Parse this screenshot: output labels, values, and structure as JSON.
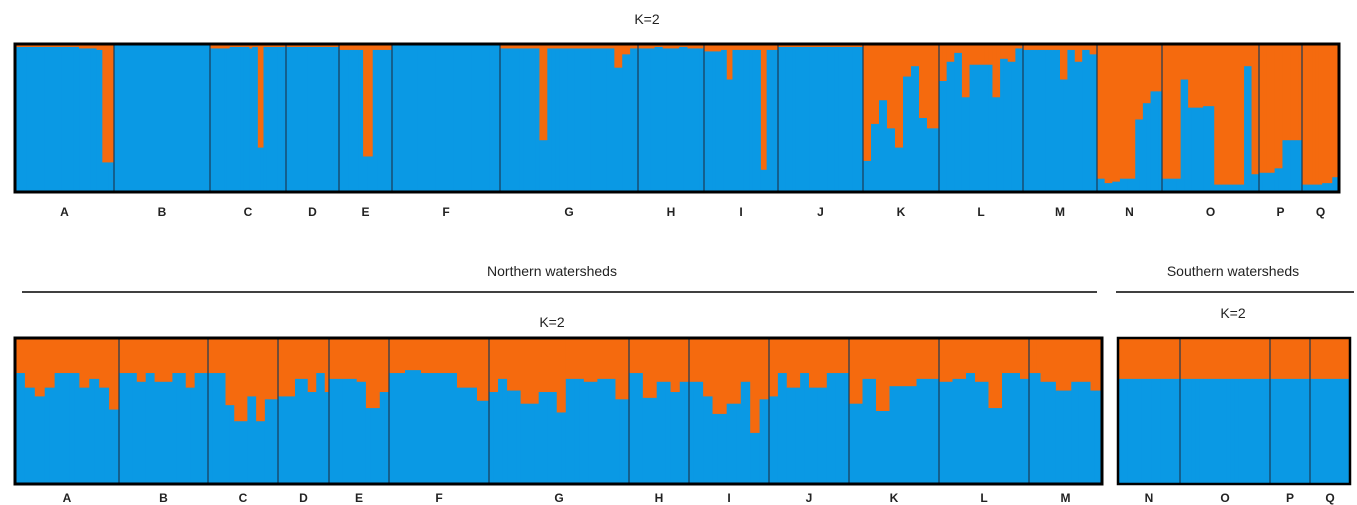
{
  "colors": {
    "cluster1": "#0a99e4",
    "cluster2": "#f56a0e",
    "frame": "#000000",
    "divider": "#1a3a55"
  },
  "headings": {
    "north": "Northern watersheds",
    "south": "Southern watersheds"
  },
  "chart_data": [
    {
      "type": "bar",
      "stacked": true,
      "title": "K=2",
      "ylim": [
        0,
        1
      ],
      "series_names": [
        "cluster1",
        "cluster2"
      ],
      "groups": [
        {
          "label": "A",
          "values": [
            0.98,
            0.98,
            0.98,
            0.98,
            0.98,
            0.98,
            0.98,
            0.98,
            0.98,
            0.98,
            0.98,
            0.97,
            0.97,
            0.97,
            0.96,
            0.2,
            0.2
          ]
        },
        {
          "label": "B",
          "values": [
            1,
            1,
            1,
            1,
            1,
            1,
            1,
            1,
            1,
            1,
            1,
            1,
            1,
            1,
            1,
            1,
            1,
            1,
            1,
            1,
            1,
            1,
            1,
            1
          ]
        },
        {
          "label": "C",
          "values": [
            0.97,
            0.97,
            0.97,
            0.97,
            0.97,
            0.97,
            0.97,
            0.98,
            0.98,
            0.98,
            0.98,
            0.98,
            0.98,
            0.98,
            0.97,
            0.98,
            0.98,
            0.3,
            0.3,
            0.98,
            0.98,
            0.98,
            0.98,
            0.98,
            0.98,
            0.98,
            0.98
          ]
        },
        {
          "label": "D",
          "values": [
            0.98,
            0.98,
            0.98,
            0.98,
            0.98,
            0.98,
            0.98,
            0.98,
            0.98,
            0.98
          ]
        },
        {
          "label": "E",
          "values": [
            0.96,
            0.96,
            0.96,
            0.96,
            0.96,
            0.24,
            0.24,
            0.96,
            0.96,
            0.96,
            0.96
          ]
        },
        {
          "label": "F",
          "values": [
            1,
            1,
            1,
            1,
            1,
            1,
            1,
            1,
            1,
            1,
            1,
            1,
            1,
            1,
            1,
            1,
            1,
            1,
            1,
            1,
            1,
            1,
            1,
            1,
            1,
            1,
            1,
            1,
            1,
            1
          ]
        },
        {
          "label": "G",
          "values": [
            0.97,
            0.97,
            0.97,
            0.97,
            0.97,
            0.97,
            0.97,
            0.97,
            0.97,
            0.97,
            0.35,
            0.35,
            0.97,
            0.97,
            0.97,
            0.97,
            0.97,
            0.97,
            0.97,
            0.97,
            0.97,
            0.97,
            0.97,
            0.97,
            0.97,
            0.97,
            0.97,
            0.97,
            0.97,
            0.84,
            0.84,
            0.93,
            0.93,
            0.97,
            0.97
          ]
        },
        {
          "label": "H",
          "values": [
            0.97,
            0.97,
            0.97,
            0.97,
            0.98,
            0.98,
            0.97,
            0.97,
            0.97,
            0.97,
            0.98,
            0.98,
            0.97,
            0.97,
            0.97,
            0.97
          ]
        },
        {
          "label": "I",
          "values": [
            0.95,
            0.95,
            0.95,
            0.95,
            0.95,
            0.95,
            0.96,
            0.96,
            0.76,
            0.76,
            0.96,
            0.96,
            0.96,
            0.96,
            0.96,
            0.96,
            0.96,
            0.96,
            0.96,
            0.96,
            0.15,
            0.15,
            0.96,
            0.96,
            0.96,
            0.96
          ]
        },
        {
          "label": "J",
          "values": [
            0.98,
            0.98,
            0.98,
            0.98,
            0.98,
            0.98,
            0.98,
            0.98,
            0.98,
            0.98,
            0.98,
            0.98,
            0.98,
            0.98,
            0.98,
            0.98,
            0.98,
            0.98,
            0.98,
            0.98,
            0.98,
            0.98,
            0.98,
            0.98
          ]
        },
        {
          "label": "K",
          "values": [
            0.21,
            0.21,
            0.46,
            0.46,
            0.62,
            0.62,
            0.43,
            0.43,
            0.3,
            0.3,
            0.78,
            0.78,
            0.85,
            0.85,
            0.5,
            0.5,
            0.43,
            0.43,
            0.43
          ]
        },
        {
          "label": "L",
          "values": [
            0.75,
            0.75,
            0.88,
            0.88,
            0.94,
            0.94,
            0.64,
            0.64,
            0.86,
            0.86,
            0.86,
            0.86,
            0.86,
            0.86,
            0.64,
            0.64,
            0.9,
            0.9,
            0.88,
            0.88,
            0.97,
            0.97
          ]
        },
        {
          "label": "M",
          "values": [
            0.96,
            0.96,
            0.96,
            0.96,
            0.96,
            0.96,
            0.96,
            0.96,
            0.96,
            0.96,
            0.76,
            0.76,
            0.96,
            0.96,
            0.88,
            0.88,
            0.96,
            0.96,
            0.93,
            0.93
          ]
        },
        {
          "label": "N",
          "values": [
            0.09,
            0.09,
            0.06,
            0.06,
            0.07,
            0.07,
            0.09,
            0.09,
            0.09,
            0.09,
            0.49,
            0.49,
            0.6,
            0.6,
            0.68,
            0.68,
            0.68
          ]
        },
        {
          "label": "O",
          "values": [
            0.09,
            0.09,
            0.09,
            0.09,
            0.09,
            0.76,
            0.76,
            0.57,
            0.57,
            0.57,
            0.57,
            0.58,
            0.58,
            0.58,
            0.05,
            0.05,
            0.05,
            0.05,
            0.05,
            0.05,
            0.05,
            0.05,
            0.85,
            0.85,
            0.12,
            0.12
          ]
        },
        {
          "label": "P",
          "values": [
            0.13,
            0.13,
            0.13,
            0.13,
            0.16,
            0.16,
            0.35,
            0.35,
            0.35,
            0.35,
            0.35
          ]
        },
        {
          "label": "Q",
          "values": [
            0.05,
            0.05,
            0.05,
            0.05,
            0.05,
            0.05,
            0.06,
            0.06,
            0.06,
            0.1,
            0.1
          ]
        }
      ]
    },
    {
      "type": "bar",
      "stacked": true,
      "title": "K=2",
      "ylim": [
        0,
        1
      ],
      "series_names": [
        "cluster1",
        "cluster2"
      ],
      "groups": [
        {
          "label": "A",
          "values": [
            0.76,
            0.76,
            0.66,
            0.66,
            0.6,
            0.6,
            0.66,
            0.66,
            0.76,
            0.76,
            0.76,
            0.76,
            0.76,
            0.66,
            0.66,
            0.72,
            0.72,
            0.66,
            0.66,
            0.51,
            0.51
          ]
        },
        {
          "label": "B",
          "values": [
            0.76,
            0.76,
            0.76,
            0.76,
            0.7,
            0.7,
            0.76,
            0.76,
            0.7,
            0.7,
            0.7,
            0.7,
            0.76,
            0.76,
            0.76,
            0.66,
            0.66,
            0.76,
            0.76,
            0.76
          ]
        },
        {
          "label": "C",
          "values": [
            0.76,
            0.76,
            0.76,
            0.76,
            0.54,
            0.54,
            0.43,
            0.43,
            0.43,
            0.6,
            0.6,
            0.43,
            0.43,
            0.58,
            0.58,
            0.58
          ]
        },
        {
          "label": "D",
          "values": [
            0.6,
            0.6,
            0.6,
            0.6,
            0.72,
            0.72,
            0.72,
            0.63,
            0.63,
            0.76,
            0.76,
            0.63
          ]
        },
        {
          "label": "E",
          "values": [
            0.72,
            0.72,
            0.72,
            0.72,
            0.72,
            0.72,
            0.7,
            0.7,
            0.52,
            0.52,
            0.52,
            0.63,
            0.63
          ]
        },
        {
          "label": "F",
          "values": [
            0.76,
            0.76,
            0.76,
            0.76,
            0.78,
            0.78,
            0.78,
            0.78,
            0.76,
            0.76,
            0.76,
            0.76,
            0.76,
            0.76,
            0.76,
            0.76,
            0.76,
            0.66,
            0.66,
            0.66,
            0.66,
            0.66,
            0.57,
            0.57,
            0.57
          ]
        },
        {
          "label": "G",
          "values": [
            0.63,
            0.63,
            0.72,
            0.72,
            0.64,
            0.64,
            0.64,
            0.55,
            0.55,
            0.55,
            0.55,
            0.63,
            0.63,
            0.63,
            0.63,
            0.49,
            0.49,
            0.72,
            0.72,
            0.72,
            0.72,
            0.7,
            0.7,
            0.7,
            0.72,
            0.72,
            0.72,
            0.72,
            0.58,
            0.58,
            0.58
          ]
        },
        {
          "label": "H",
          "values": [
            0.76,
            0.76,
            0.76,
            0.59,
            0.59,
            0.59,
            0.7,
            0.7,
            0.7,
            0.63,
            0.63,
            0.7,
            0.7
          ]
        },
        {
          "label": "I",
          "values": [
            0.7,
            0.7,
            0.7,
            0.6,
            0.6,
            0.48,
            0.48,
            0.48,
            0.55,
            0.55,
            0.55,
            0.7,
            0.7,
            0.35,
            0.35,
            0.58,
            0.58
          ]
        },
        {
          "label": "J",
          "values": [
            0.6,
            0.6,
            0.76,
            0.76,
            0.66,
            0.66,
            0.66,
            0.76,
            0.76,
            0.66,
            0.66,
            0.66,
            0.66,
            0.76,
            0.76,
            0.76,
            0.76,
            0.76
          ]
        },
        {
          "label": "K",
          "values": [
            0.55,
            0.55,
            0.55,
            0.72,
            0.72,
            0.72,
            0.5,
            0.5,
            0.5,
            0.67,
            0.67,
            0.67,
            0.67,
            0.67,
            0.67,
            0.72,
            0.72,
            0.72,
            0.72,
            0.72
          ]
        },
        {
          "label": "L",
          "values": [
            0.7,
            0.7,
            0.7,
            0.72,
            0.72,
            0.72,
            0.76,
            0.76,
            0.7,
            0.7,
            0.7,
            0.52,
            0.52,
            0.52,
            0.76,
            0.76,
            0.76,
            0.76,
            0.72,
            0.72
          ]
        },
        {
          "label": "M",
          "values": [
            0.76,
            0.76,
            0.76,
            0.7,
            0.7,
            0.7,
            0.7,
            0.64,
            0.64,
            0.64,
            0.64,
            0.7,
            0.7,
            0.7,
            0.7,
            0.7,
            0.64,
            0.64,
            0.64
          ]
        }
      ]
    },
    {
      "type": "bar",
      "stacked": true,
      "title": "K=2",
      "ylim": [
        0,
        1
      ],
      "series_names": [
        "cluster1",
        "cluster2"
      ],
      "groups": [
        {
          "label": "N",
          "values": [
            0.72,
            0.72,
            0.72,
            0.72,
            0.72,
            0.72,
            0.72,
            0.72,
            0.72,
            0.72,
            0.72,
            0.72,
            0.72
          ]
        },
        {
          "label": "O",
          "values": [
            0.72,
            0.72,
            0.72,
            0.72,
            0.72,
            0.72,
            0.72,
            0.72,
            0.72,
            0.72,
            0.72,
            0.72,
            0.72,
            0.72,
            0.72,
            0.72,
            0.72,
            0.72,
            0.72,
            0.72,
            0.72,
            0.72,
            0.72
          ]
        },
        {
          "label": "P",
          "values": [
            0.72,
            0.72,
            0.72,
            0.72,
            0.72,
            0.72,
            0.72,
            0.72,
            0.72,
            0.72
          ]
        },
        {
          "label": "Q",
          "values": [
            0.72,
            0.72,
            0.72,
            0.72,
            0.72,
            0.72,
            0.72,
            0.72,
            0.72,
            0.72
          ]
        }
      ]
    }
  ]
}
